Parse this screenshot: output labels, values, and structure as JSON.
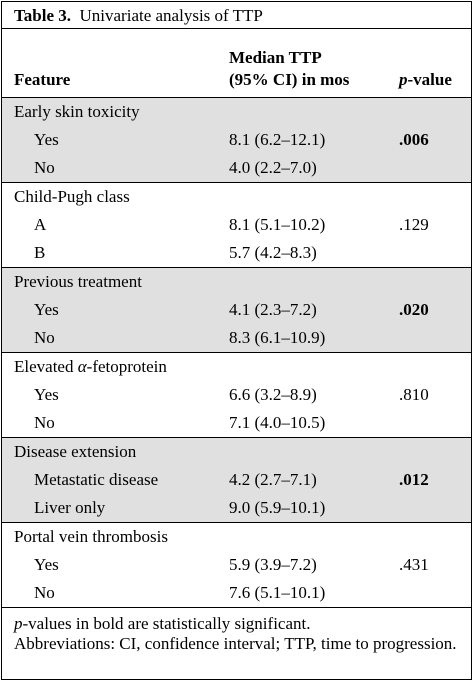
{
  "table": {
    "caption_number": "Table 3.",
    "caption_title": "Univariate analysis of TTP",
    "headers": {
      "feature": "Feature",
      "median_line1": "Median TTP",
      "median_line2": "(95% CI) in mos",
      "pvalue_italic": "p",
      "pvalue_rest": "-value"
    },
    "groups": [
      {
        "title": "Early skin toxicity",
        "shaded": true,
        "rows": [
          {
            "label": "Yes",
            "median": "8.1 (6.2–12.1)",
            "p": ".006",
            "bold": true
          },
          {
            "label": "No",
            "median": "4.0 (2.2–7.0)",
            "p": "",
            "bold": false
          }
        ]
      },
      {
        "title": "Child-Pugh class",
        "shaded": false,
        "rows": [
          {
            "label": "A",
            "median": "8.1 (5.1–10.2)",
            "p": ".129",
            "bold": false
          },
          {
            "label": "B",
            "median": "5.7 (4.2–8.3)",
            "p": "",
            "bold": false
          }
        ]
      },
      {
        "title": "Previous treatment",
        "shaded": true,
        "rows": [
          {
            "label": "Yes",
            "median": "4.1 (2.3–7.2)",
            "p": ".020",
            "bold": true
          },
          {
            "label": "No",
            "median": "8.3 (6.1–10.9)",
            "p": "",
            "bold": false
          }
        ]
      },
      {
        "title_prefix": "Elevated ",
        "title_greek": "α",
        "title_suffix": "-fetoprotein",
        "shaded": false,
        "rows": [
          {
            "label": "Yes",
            "median": "6.6 (3.2–8.9)",
            "p": ".810",
            "bold": false
          },
          {
            "label": "No",
            "median": "7.1 (4.0–10.5)",
            "p": "",
            "bold": false
          }
        ]
      },
      {
        "title": "Disease extension",
        "shaded": true,
        "rows": [
          {
            "label": "Metastatic disease",
            "median": "4.2 (2.7–7.1)",
            "p": ".012",
            "bold": true
          },
          {
            "label": "Liver only",
            "median": "9.0 (5.9–10.1)",
            "p": "",
            "bold": false
          }
        ]
      },
      {
        "title": "Portal vein thrombosis",
        "shaded": false,
        "rows": [
          {
            "label": "Yes",
            "median": "5.9 (3.9–7.2)",
            "p": ".431",
            "bold": false
          },
          {
            "label": "No",
            "median": "7.6 (5.1–10.1)",
            "p": "",
            "bold": false
          }
        ]
      }
    ],
    "footnote": {
      "line1_italic": "p",
      "line1_rest": "-values in bold are statistically significant.",
      "line2": "Abbreviations: CI, confidence interval; TTP, time to progression."
    }
  }
}
